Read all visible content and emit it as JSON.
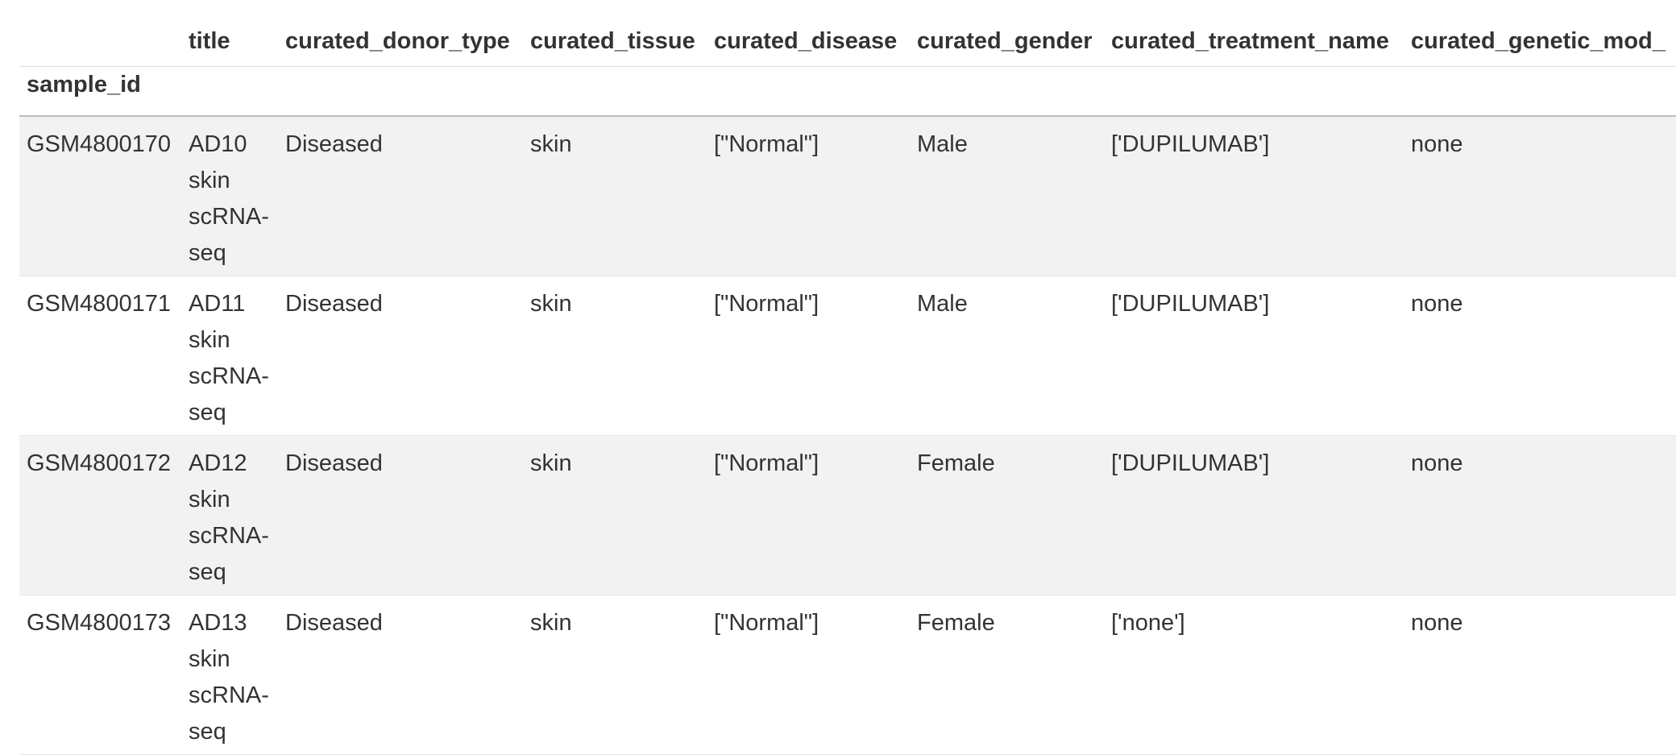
{
  "table": {
    "columns": [
      "",
      "title",
      "curated_donor_type",
      "curated_tissue",
      "curated_disease",
      "curated_gender",
      "curated_treatment_name",
      "curated_genetic_mod_"
    ],
    "index_name": "sample_id",
    "rows": [
      {
        "sample_id": "GSM4800170",
        "title_lines": [
          "AD10",
          "skin",
          "scRNA-",
          "seq"
        ],
        "curated_donor_type": "Diseased",
        "curated_tissue": "skin",
        "curated_disease": "[\"Normal\"]",
        "curated_gender": "Male",
        "curated_treatment_name": "['DUPILUMAB']",
        "curated_genetic_mod": "none"
      },
      {
        "sample_id": "GSM4800171",
        "title_lines": [
          "AD11",
          "skin",
          "scRNA-",
          "seq"
        ],
        "curated_donor_type": "Diseased",
        "curated_tissue": "skin",
        "curated_disease": "[\"Normal\"]",
        "curated_gender": "Male",
        "curated_treatment_name": "['DUPILUMAB']",
        "curated_genetic_mod": "none"
      },
      {
        "sample_id": "GSM4800172",
        "title_lines": [
          "AD12",
          "skin",
          "scRNA-",
          "seq"
        ],
        "curated_donor_type": "Diseased",
        "curated_tissue": "skin",
        "curated_disease": "[\"Normal\"]",
        "curated_gender": "Female",
        "curated_treatment_name": "['DUPILUMAB']",
        "curated_genetic_mod": "none"
      },
      {
        "sample_id": "GSM4800173",
        "title_lines": [
          "AD13",
          "skin",
          "scRNA-",
          "seq"
        ],
        "curated_donor_type": "Diseased",
        "curated_tissue": "skin",
        "curated_disease": "[\"Normal\"]",
        "curated_gender": "Female",
        "curated_treatment_name": "['none']",
        "curated_genetic_mod": "none"
      }
    ]
  }
}
